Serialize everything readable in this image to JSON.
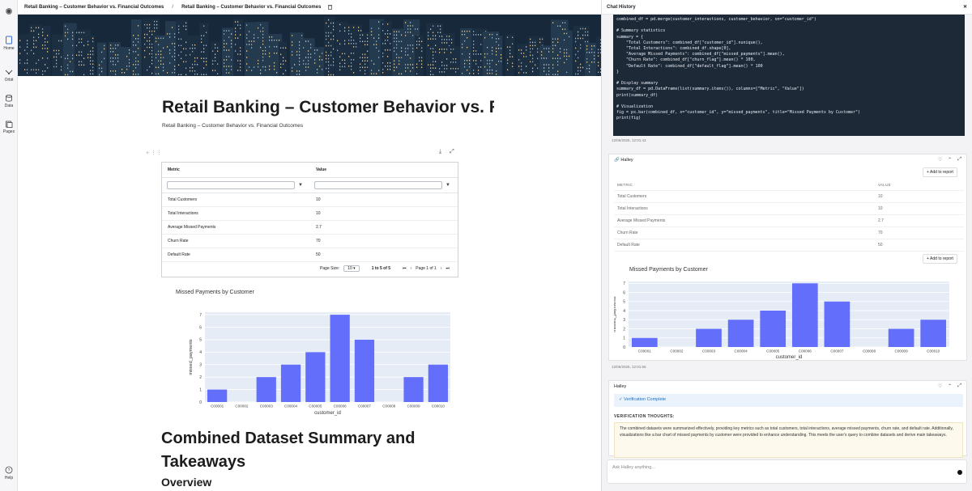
{
  "breadcrumb": {
    "item1": "Retail Banking – Customer Behavior vs. Financial Outcomes",
    "separator": "/",
    "item2": "Retail Banking – Customer Behavior vs. Financial Outcomes"
  },
  "rail": {
    "items": [
      {
        "label": "Home",
        "icon": "home-icon"
      },
      {
        "label": "Orbit",
        "icon": "orbit-icon"
      },
      {
        "label": "Data",
        "icon": "database-icon"
      },
      {
        "label": "Pages",
        "icon": "pages-icon"
      },
      {
        "label": "Help",
        "icon": "help-icon"
      }
    ]
  },
  "doc": {
    "title": "Retail Banking – Customer Behavior vs. Financial Outcomes",
    "subtitle": "Retail Banking – Customer Behavior vs. Financial Outcomes",
    "grid": {
      "columns": [
        "Metric",
        "Value"
      ],
      "rows": [
        [
          "Total Customers",
          "10"
        ],
        [
          "Total Interactions",
          "10"
        ],
        [
          "Average Missed Payments",
          "2.7"
        ],
        [
          "Churn Rate",
          "70"
        ],
        [
          "Default Rate",
          "50"
        ]
      ],
      "page_size_label": "Page Size:",
      "page_size": "10",
      "range_text": "1 to 5 of 5",
      "page_text": "Page 1 of 1"
    },
    "heading": "Combined Dataset Summary and Takeaways",
    "subheading": "Overview"
  },
  "chart_data": {
    "type": "bar",
    "title": "Missed Payments by Customer",
    "xlabel": "customer_id",
    "ylabel": "missed_payments",
    "categories": [
      "C00001",
      "C00002",
      "C00003",
      "C00004",
      "C00005",
      "C00006",
      "C00007",
      "C00008",
      "C00009",
      "C00010"
    ],
    "values": [
      1,
      0,
      2,
      3,
      4,
      7,
      5,
      0,
      2,
      3
    ],
    "ylim": [
      0,
      7.2
    ],
    "yticks": [
      0,
      1,
      2,
      3,
      4,
      5,
      6,
      7
    ],
    "bar_color": "#636efa",
    "plot_bg": "#e5ecf6"
  },
  "chat": {
    "title": "Chat History",
    "code": "combined_df = pd.merge(customer_interactions, customer_behavior, on=\"customer_id\")\n\n# Summary statistics\nsummary = {\n    \"Total Customers\": combined_df[\"customer_id\"].nunique(),\n    \"Total Interactions\": combined_df.shape[0],\n    \"Average Missed Payments\": combined_df[\"missed_payments\"].mean(),\n    \"Churn Rate\": combined_df[\"churn_flag\"].mean() * 100,\n    \"Default Rate\": combined_df[\"default_flag\"].mean() * 100\n}\n\n# Display summary\nsummary_df = pd.DataFrame(list(summary.items()), columns=[\"Metric\", \"Value\"])\nprint(summary_df)\n\n# Visualization\nfig = px.bar(combined_df, x=\"customer_id\", y=\"missed_payments\", title=\"Missed Payments by Customer\")\nprint(fig)",
    "ts1": "12/05/2025, 12:01:43",
    "card1": {
      "author": "Halley",
      "add_label": "+ Add to report",
      "columns": [
        "METRIC",
        "VALUE"
      ],
      "rows": [
        [
          "Total Customers",
          "10"
        ],
        [
          "Total Interactions",
          "10"
        ],
        [
          "Average Missed Payments",
          "2.7"
        ],
        [
          "Churn Rate",
          "70"
        ],
        [
          "Default Rate",
          "50"
        ]
      ]
    },
    "ts2": "12/05/2025, 12:01:56",
    "card2": {
      "author": "Halley",
      "verification": "✓ Verification Complete",
      "thoughts_label": "VERIFICATION THOUGHTS:",
      "thoughts": "The combined datasets were summarized effectively, providing key metrics such as total customers, total interactions, average missed payments, churn rate, and default rate. Additionally, visualizations like a bar chart of missed payments by customer were provided to enhance understanding. This meets the user's query to combine datasets and derive main takeaways."
    },
    "ask_placeholder": "Ask Halley anything..."
  }
}
